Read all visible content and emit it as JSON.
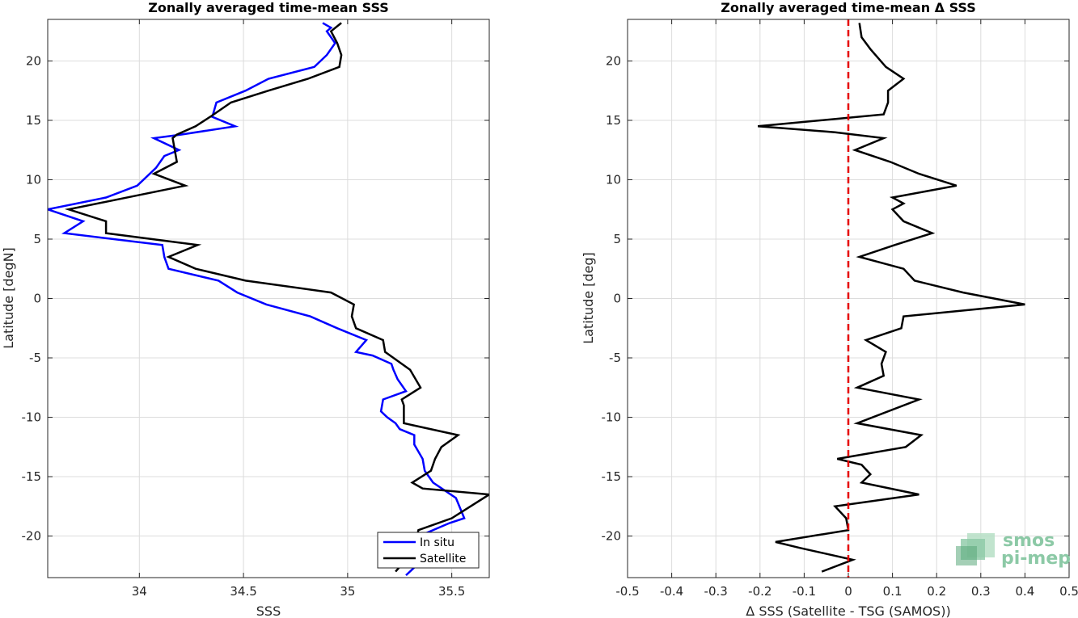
{
  "chart_data": [
    {
      "type": "line",
      "title": "Zonally averaged time-mean SSS",
      "xlabel": "SSS",
      "ylabel": "Latitude [degN]",
      "xlim": [
        33.56,
        35.68
      ],
      "ylim": [
        -23.5,
        23.5
      ],
      "xticks": [
        "34",
        "34.5",
        "35",
        "35.5"
      ],
      "yticks": [
        "-20",
        "-15",
        "-10",
        "-5",
        "0",
        "5",
        "10",
        "15",
        "20"
      ],
      "grid": true,
      "legend": "bottom-right",
      "series": [
        {
          "name": "In situ",
          "color": "#0000ff",
          "points": [
            [
              35.28,
              -23.3
            ],
            [
              35.39,
              -21.5
            ],
            [
              35.37,
              -19.8
            ],
            [
              35.49,
              -18.9
            ],
            [
              35.56,
              -18.5
            ],
            [
              35.52,
              -16.8
            ],
            [
              35.41,
              -15.5
            ],
            [
              35.37,
              -14.5
            ],
            [
              35.36,
              -13.5
            ],
            [
              35.32,
              -12.3
            ],
            [
              35.32,
              -11.5
            ],
            [
              35.25,
              -11.0
            ],
            [
              35.23,
              -10.5
            ],
            [
              35.19,
              -10.0
            ],
            [
              35.16,
              -9.5
            ],
            [
              35.17,
              -8.5
            ],
            [
              35.28,
              -7.8
            ],
            [
              35.24,
              -6.8
            ],
            [
              35.22,
              -6.0
            ],
            [
              35.21,
              -5.5
            ],
            [
              35.12,
              -4.8
            ],
            [
              35.04,
              -4.5
            ],
            [
              35.09,
              -3.5
            ],
            [
              34.95,
              -2.5
            ],
            [
              34.82,
              -1.5
            ],
            [
              34.61,
              -0.5
            ],
            [
              34.47,
              0.5
            ],
            [
              34.38,
              1.5
            ],
            [
              34.14,
              2.5
            ],
            [
              34.12,
              3.5
            ],
            [
              34.11,
              4.5
            ],
            [
              33.64,
              5.5
            ],
            [
              33.73,
              6.5
            ],
            [
              33.56,
              7.5
            ],
            [
              33.84,
              8.5
            ],
            [
              33.99,
              9.5
            ],
            [
              34.08,
              11.0
            ],
            [
              34.12,
              12.0
            ],
            [
              34.19,
              12.5
            ],
            [
              34.07,
              13.5
            ],
            [
              34.2,
              13.8
            ],
            [
              34.46,
              14.5
            ],
            [
              34.35,
              15.3
            ],
            [
              34.37,
              16.5
            ],
            [
              34.51,
              17.5
            ],
            [
              34.62,
              18.5
            ],
            [
              34.84,
              19.5
            ],
            [
              34.9,
              20.5
            ],
            [
              34.94,
              21.5
            ],
            [
              34.9,
              22.5
            ],
            [
              34.92,
              22.8
            ],
            [
              34.88,
              23.2
            ]
          ]
        },
        {
          "name": "Satellite",
          "color": "#000000",
          "points": [
            [
              35.23,
              -23.0
            ],
            [
              35.32,
              -21.2
            ],
            [
              35.34,
              -19.5
            ],
            [
              35.5,
              -18.5
            ],
            [
              35.68,
              -16.5
            ],
            [
              35.36,
              -16.0
            ],
            [
              35.31,
              -15.5
            ],
            [
              35.4,
              -14.5
            ],
            [
              35.42,
              -13.5
            ],
            [
              35.45,
              -12.5
            ],
            [
              35.53,
              -11.5
            ],
            [
              35.27,
              -10.5
            ],
            [
              35.27,
              -9.0
            ],
            [
              35.26,
              -8.5
            ],
            [
              35.35,
              -7.5
            ],
            [
              35.3,
              -6.0
            ],
            [
              35.22,
              -5.0
            ],
            [
              35.18,
              -4.5
            ],
            [
              35.17,
              -3.5
            ],
            [
              35.04,
              -2.5
            ],
            [
              35.02,
              -1.5
            ],
            [
              35.03,
              -0.5
            ],
            [
              34.92,
              0.5
            ],
            [
              34.51,
              1.5
            ],
            [
              34.27,
              2.5
            ],
            [
              34.14,
              3.5
            ],
            [
              34.28,
              4.5
            ],
            [
              33.84,
              5.5
            ],
            [
              33.84,
              6.5
            ],
            [
              33.66,
              7.5
            ],
            [
              34.22,
              9.5
            ],
            [
              34.07,
              10.5
            ],
            [
              34.18,
              11.5
            ],
            [
              34.17,
              12.5
            ],
            [
              34.16,
              13.5
            ],
            [
              34.18,
              13.8
            ],
            [
              34.27,
              14.5
            ],
            [
              34.34,
              15.3
            ],
            [
              34.44,
              16.5
            ],
            [
              34.62,
              17.5
            ],
            [
              34.81,
              18.5
            ],
            [
              34.96,
              19.5
            ],
            [
              34.97,
              20.5
            ],
            [
              34.95,
              21.5
            ],
            [
              34.92,
              22.5
            ],
            [
              34.97,
              23.2
            ]
          ]
        }
      ]
    },
    {
      "type": "line",
      "title": "Zonally averaged time-mean Δ SSS",
      "xlabel": "Δ SSS (Satellite - TSG (SAMOS))",
      "ylabel": "Latitude [deg]",
      "xlim": [
        -0.5,
        0.5
      ],
      "ylim": [
        -23.5,
        23.5
      ],
      "xticks": [
        "-0.5",
        "-0.4",
        "-0.3",
        "-0.2",
        "-0.1",
        "0",
        "0.1",
        "0.2",
        "0.3",
        "0.4",
        "0.5"
      ],
      "yticks": [
        "-20",
        "-15",
        "-10",
        "-5",
        "0",
        "5",
        "10",
        "15",
        "20"
      ],
      "grid": true,
      "reference_line": {
        "x": 0,
        "color": "#e60000",
        "style": "dashed"
      },
      "series": [
        {
          "color": "#000000",
          "points": [
            [
              -0.06,
              -23.0
            ],
            [
              0.01,
              -22.0
            ],
            [
              -0.11,
              -21.0
            ],
            [
              -0.165,
              -20.5
            ],
            [
              0.0,
              -19.5
            ],
            [
              -0.005,
              -18.5
            ],
            [
              -0.03,
              -17.5
            ],
            [
              0.16,
              -16.5
            ],
            [
              0.03,
              -15.5
            ],
            [
              0.05,
              -14.8
            ],
            [
              0.03,
              -14.0
            ],
            [
              -0.025,
              -13.5
            ],
            [
              0.13,
              -12.5
            ],
            [
              0.165,
              -11.5
            ],
            [
              0.02,
              -10.5
            ],
            [
              0.16,
              -8.5
            ],
            [
              0.02,
              -7.5
            ],
            [
              0.08,
              -6.5
            ],
            [
              0.075,
              -5.5
            ],
            [
              0.085,
              -4.5
            ],
            [
              0.04,
              -3.5
            ],
            [
              0.12,
              -2.5
            ],
            [
              0.125,
              -1.5
            ],
            [
              0.4,
              -0.5
            ],
            [
              0.26,
              0.5
            ],
            [
              0.15,
              1.5
            ],
            [
              0.125,
              2.5
            ],
            [
              0.025,
              3.5
            ],
            [
              0.105,
              4.5
            ],
            [
              0.19,
              5.5
            ],
            [
              0.125,
              6.5
            ],
            [
              0.1,
              7.5
            ],
            [
              0.125,
              8.0
            ],
            [
              0.1,
              8.5
            ],
            [
              0.245,
              9.5
            ],
            [
              0.16,
              10.5
            ],
            [
              0.095,
              11.5
            ],
            [
              0.015,
              12.5
            ],
            [
              0.08,
              13.5
            ],
            [
              -0.03,
              14.0
            ],
            [
              -0.205,
              14.5
            ],
            [
              0.08,
              15.5
            ],
            [
              0.09,
              16.5
            ],
            [
              0.09,
              17.5
            ],
            [
              0.125,
              18.5
            ],
            [
              0.085,
              19.5
            ],
            [
              0.05,
              21.0
            ],
            [
              0.03,
              22.0
            ],
            [
              0.025,
              23.2
            ]
          ]
        }
      ]
    }
  ],
  "legend": {
    "items": [
      "In situ",
      "Satellite"
    ]
  },
  "logo": {
    "line1": "smos",
    "line2": "pi-mep",
    "colors": [
      "#8cc9a6",
      "#5aa77a",
      "#b6dfc6"
    ]
  }
}
